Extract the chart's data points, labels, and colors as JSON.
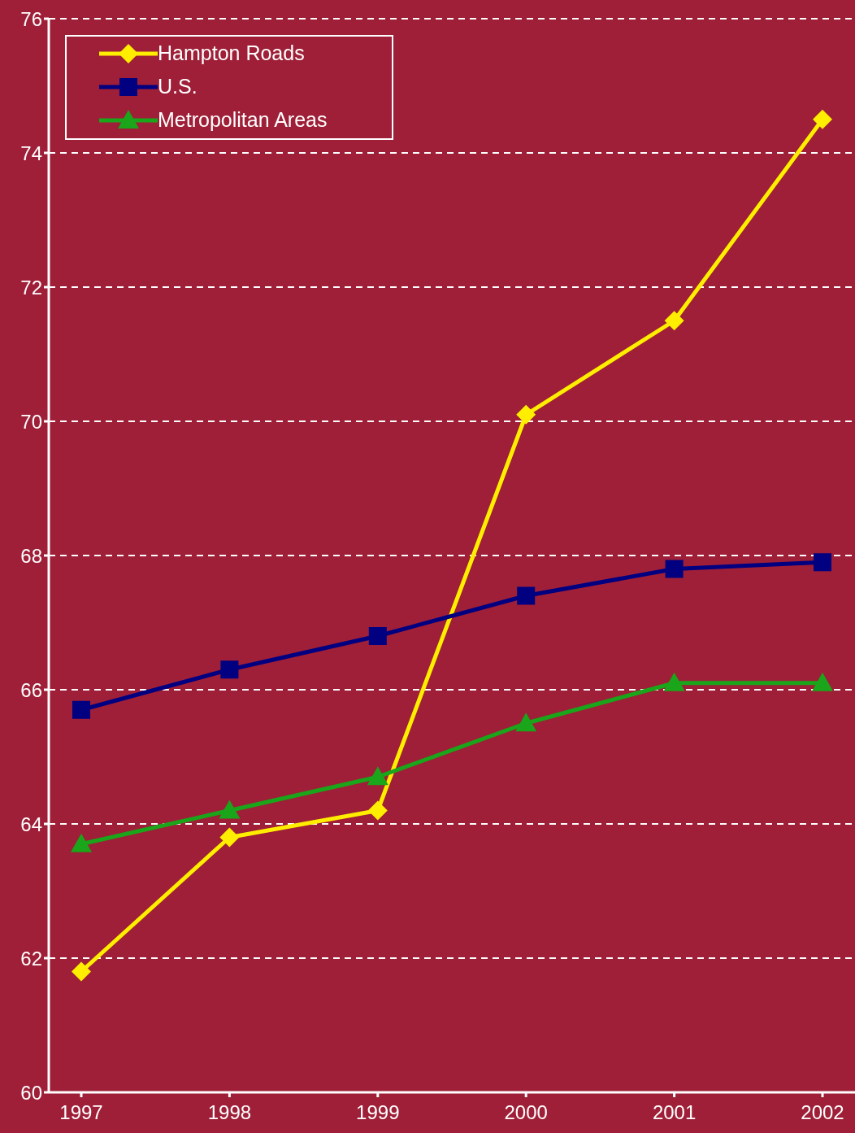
{
  "chart_data": {
    "type": "line",
    "categories": [
      "1997",
      "1998",
      "1999",
      "2000",
      "2001",
      "2002"
    ],
    "series": [
      {
        "name": "Hampton Roads",
        "color": "#ffee00",
        "marker": "diamond",
        "values": [
          61.8,
          63.8,
          64.2,
          70.1,
          71.5,
          74.5
        ]
      },
      {
        "name": "U.S.",
        "color": "#000080",
        "marker": "square",
        "values": [
          65.7,
          66.3,
          66.8,
          67.4,
          67.8,
          67.9
        ]
      },
      {
        "name": "Metropolitan Areas",
        "color": "#1aa51a",
        "marker": "triangle",
        "values": [
          63.7,
          64.2,
          64.7,
          65.5,
          66.1,
          66.1
        ]
      }
    ],
    "ylim": [
      60,
      76
    ],
    "yticks": [
      60,
      62,
      64,
      66,
      68,
      70,
      72,
      74,
      76
    ],
    "grid": "y",
    "legend": "top left",
    "line_style": "solid"
  }
}
